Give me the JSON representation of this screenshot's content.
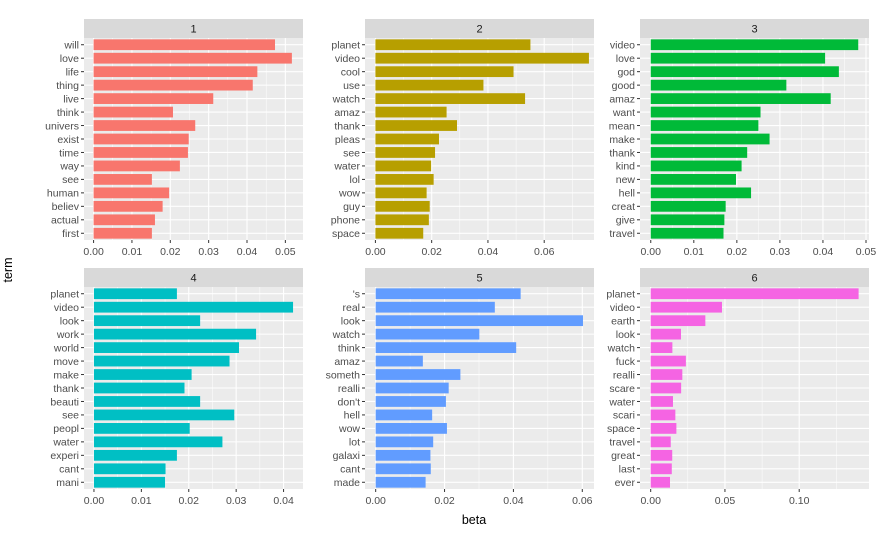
{
  "chart_data": {
    "type": "bar",
    "orientation": "horizontal",
    "xlabel": "beta",
    "ylabel": "term",
    "colors": {
      "panel_bg": "#ebebeb",
      "strip_bg": "#d9d9d9",
      "grid": "#ffffff",
      "text": "#4d4d4d",
      "axis_title": "#000000"
    },
    "panels": [
      {
        "label": "1",
        "color": "#F8766D",
        "xlim": [
          -0.0025,
          0.0546
        ],
        "ticks": [
          0,
          0.01,
          0.02,
          0.03,
          0.04,
          0.05
        ],
        "tick_labels": [
          "0.00",
          "0.01",
          "0.02",
          "0.03",
          "0.04",
          "0.05"
        ],
        "terms": [
          "will",
          "love",
          "life",
          "thing",
          "live",
          "think",
          "univers",
          "exist",
          "time",
          "way",
          "see",
          "human",
          "believ",
          "actual",
          "first"
        ],
        "values": [
          0.0473,
          0.0517,
          0.0427,
          0.0415,
          0.0312,
          0.0207,
          0.0265,
          0.0248,
          0.0246,
          0.0225,
          0.0152,
          0.0197,
          0.018,
          0.016,
          0.0152
        ]
      },
      {
        "label": "2",
        "color": "#B79F00",
        "xlim": [
          -0.0037,
          0.0777
        ],
        "ticks": [
          0,
          0.02,
          0.04,
          0.06
        ],
        "tick_labels": [
          "0.00",
          "0.02",
          "0.04",
          "0.06"
        ],
        "terms": [
          "planet",
          "video",
          "cool",
          "use",
          "watch",
          "amaz",
          "thank",
          "pleas",
          "see",
          "water",
          "lol",
          "wow",
          "guy",
          "phone",
          "space"
        ],
        "values": [
          0.0551,
          0.0759,
          0.0491,
          0.0384,
          0.0532,
          0.0253,
          0.029,
          0.0226,
          0.0212,
          0.0198,
          0.0207,
          0.0182,
          0.0193,
          0.019,
          0.017
        ]
      },
      {
        "label": "3",
        "color": "#00BA38",
        "xlim": [
          -0.0025,
          0.0507
        ],
        "ticks": [
          0,
          0.01,
          0.02,
          0.03,
          0.04,
          0.05
        ],
        "tick_labels": [
          "0.00",
          "0.01",
          "0.02",
          "0.03",
          "0.04",
          "0.05"
        ],
        "terms": [
          "video",
          "love",
          "god",
          "good",
          "amaz",
          "want",
          "mean",
          "make",
          "thank",
          "kind",
          "new",
          "hell",
          "creat",
          "give",
          "travel"
        ],
        "values": [
          0.0482,
          0.0405,
          0.0437,
          0.0315,
          0.0418,
          0.0255,
          0.025,
          0.0276,
          0.0224,
          0.0211,
          0.0198,
          0.0233,
          0.0174,
          0.0171,
          0.0169
        ]
      },
      {
        "label": "4",
        "color": "#00BFC4",
        "xlim": [
          -0.0021,
          0.0441
        ],
        "ticks": [
          0,
          0.01,
          0.02,
          0.03,
          0.04
        ],
        "tick_labels": [
          "0.00",
          "0.01",
          "0.02",
          "0.03",
          "0.04"
        ],
        "terms": [
          "planet",
          "video",
          "look",
          "work",
          "world",
          "move",
          "make",
          "thank",
          "beauti",
          "see",
          "peopl",
          "water",
          "experi",
          "cant",
          "mani"
        ],
        "values": [
          0.0175,
          0.042,
          0.0224,
          0.0342,
          0.0306,
          0.0286,
          0.0206,
          0.0191,
          0.0224,
          0.0296,
          0.0202,
          0.0271,
          0.0175,
          0.0151,
          0.015
        ]
      },
      {
        "label": "5",
        "color": "#619CFF",
        "xlim": [
          -0.0031,
          0.0634
        ],
        "ticks": [
          0,
          0.02,
          0.04,
          0.06
        ],
        "tick_labels": [
          "0.00",
          "0.02",
          "0.04",
          "0.06"
        ],
        "terms": [
          "'s",
          "real",
          "look",
          "watch",
          "think",
          "amaz",
          "someth",
          "realli",
          "don't",
          "hell",
          "wow",
          "lot",
          "galaxi",
          "cant",
          "made"
        ],
        "values": [
          0.0421,
          0.0346,
          0.0602,
          0.0301,
          0.0408,
          0.0137,
          0.0246,
          0.0212,
          0.0204,
          0.0164,
          0.0207,
          0.0167,
          0.0159,
          0.016,
          0.0145
        ]
      },
      {
        "label": "6",
        "color": "#F564E3",
        "xlim": [
          -0.0072,
          0.147
        ],
        "ticks": [
          0,
          0.05,
          0.1
        ],
        "tick_labels": [
          "0.00",
          "0.05",
          "0.10"
        ],
        "terms": [
          "planet",
          "video",
          "earth",
          "look",
          "watch",
          "fuck",
          "realli",
          "scare",
          "water",
          "scari",
          "space",
          "travel",
          "great",
          "last",
          "ever"
        ],
        "values": [
          0.14,
          0.048,
          0.0368,
          0.0204,
          0.0146,
          0.0237,
          0.0213,
          0.0205,
          0.015,
          0.0166,
          0.0173,
          0.0135,
          0.0145,
          0.0142,
          0.013
        ]
      }
    ]
  }
}
